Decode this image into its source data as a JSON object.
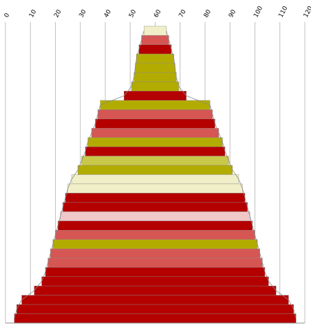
{
  "chart_data": {
    "type": "bar",
    "orientation": "horizontal",
    "layout": "centered-stack",
    "x_ticks": [
      "0",
      "10",
      "20",
      "30",
      "40",
      "50",
      "60",
      "70",
      "80",
      "90",
      "100",
      "110",
      "120"
    ],
    "xlim": [
      0,
      120
    ],
    "grid": "vertical",
    "colors": {
      "dark_red": "#b50000",
      "salmon": "#d65654",
      "olive": "#b3ac00",
      "yellow": "#c8c84a",
      "cream": "#f0efc8",
      "pink": "#f0c8c8",
      "grid": "#bfbfbf",
      "outline": "#888888"
    },
    "bars": [
      {
        "value": 9,
        "color": "cream"
      },
      {
        "value": 11,
        "color": "salmon"
      },
      {
        "value": 13,
        "color": "dark_red"
      },
      {
        "value": 15,
        "color": "olive"
      },
      {
        "value": 16,
        "color": "olive"
      },
      {
        "value": 17,
        "color": "olive"
      },
      {
        "value": 19,
        "color": "olive"
      },
      {
        "value": 25,
        "color": "dark_red"
      },
      {
        "value": 44,
        "color": "olive"
      },
      {
        "value": 46,
        "color": "salmon"
      },
      {
        "value": 48,
        "color": "dark_red"
      },
      {
        "value": 51,
        "color": "salmon"
      },
      {
        "value": 54,
        "color": "olive"
      },
      {
        "value": 56,
        "color": "dark_red"
      },
      {
        "value": 59,
        "color": "yellow"
      },
      {
        "value": 62,
        "color": "olive"
      },
      {
        "value": 67,
        "color": "cream"
      },
      {
        "value": 70,
        "color": "cream"
      },
      {
        "value": 72,
        "color": "dark_red"
      },
      {
        "value": 74,
        "color": "dark_red"
      },
      {
        "value": 76,
        "color": "pink"
      },
      {
        "value": 78,
        "color": "dark_red"
      },
      {
        "value": 80,
        "color": "salmon"
      },
      {
        "value": 82,
        "color": "olive"
      },
      {
        "value": 84,
        "color": "salmon"
      },
      {
        "value": 86,
        "color": "salmon"
      },
      {
        "value": 88,
        "color": "dark_red"
      },
      {
        "value": 91,
        "color": "dark_red"
      },
      {
        "value": 97,
        "color": "dark_red"
      },
      {
        "value": 107,
        "color": "dark_red"
      },
      {
        "value": 111,
        "color": "dark_red"
      },
      {
        "value": 113,
        "color": "dark_red"
      }
    ]
  }
}
